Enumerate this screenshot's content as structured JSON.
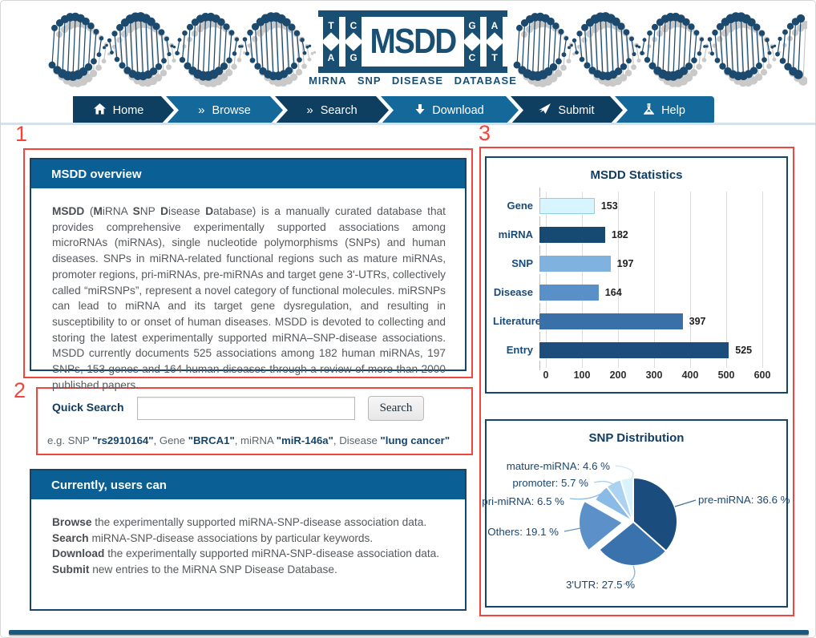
{
  "header": {
    "logo_text": "MSDD",
    "logo_subtitle": "MIRNA SNP DISEASE DATABASE",
    "logo_left_letters": [
      "T",
      "C",
      "A",
      "G"
    ],
    "logo_right_letters": [
      "G",
      "A",
      "C",
      "T"
    ]
  },
  "nav": {
    "items": [
      {
        "label": "Home",
        "icon": "home-icon"
      },
      {
        "label": "Browse",
        "icon": "chevrons-icon"
      },
      {
        "label": "Search",
        "icon": "chevrons-icon"
      },
      {
        "label": "Download",
        "icon": "download-arrow-icon"
      },
      {
        "label": "Submit",
        "icon": "send-icon"
      },
      {
        "label": "Help",
        "icon": "flask-icon"
      }
    ]
  },
  "annotations": {
    "one": "1",
    "two": "2",
    "three": "3"
  },
  "overview": {
    "title": "MSDD overview",
    "segments": [
      {
        "t": "MSDD",
        "b": true
      },
      {
        "t": " (",
        "b": false
      },
      {
        "t": "M",
        "b": true
      },
      {
        "t": "iRNA ",
        "b": false
      },
      {
        "t": "S",
        "b": true
      },
      {
        "t": "NP ",
        "b": false
      },
      {
        "t": "D",
        "b": true
      },
      {
        "t": "isease ",
        "b": false
      },
      {
        "t": "D",
        "b": true
      },
      {
        "t": "atabase) is a manually curated database that provides comprehensive experimentally supported associations among microRNAs (miRNAs), single nucleotide polymorphisms (SNPs) and human diseases. SNPs in miRNA-related functional regions such as mature miRNAs, promoter regions, pri-miRNAs, pre-miRNAs and target gene 3'-UTRs, collectively called “miRSNPs”, represent a novel category of functional molecules. miRSNPs can lead to miRNA and its target gene dysregulation, and resulting in susceptibility to or onset of human diseases. MSDD is devoted to collecting and storing the latest experimentally supported miRNA–SNP-disease associations. MSDD currently documents 525 associations among 182 human miRNAs, 197 SNPs, 153 genes and 164 human diseases through a review of more than 2000 published papers.",
        "b": false
      }
    ]
  },
  "quick_search": {
    "label": "Quick Search",
    "input_value": "",
    "button": "Search",
    "example": [
      {
        "t": "e.g. SNP ",
        "b": false
      },
      {
        "t": "\"rs2910164\"",
        "b": true
      },
      {
        "t": ", Gene ",
        "b": false
      },
      {
        "t": "\"BRCA1\"",
        "b": true
      },
      {
        "t": ", miRNA ",
        "b": false
      },
      {
        "t": "\"miR-146a\"",
        "b": true
      },
      {
        "t": ", Disease ",
        "b": false
      },
      {
        "t": "\"lung cancer\"",
        "b": true
      }
    ]
  },
  "users_can": {
    "title": "Currently, users can",
    "lines": [
      [
        {
          "t": "Browse",
          "b": true
        },
        {
          "t": " the experimentally supported miRNA-SNP-disease association data.",
          "b": false
        }
      ],
      [
        {
          "t": "Search",
          "b": true
        },
        {
          "t": " miRNA-SNP-disease associations by particular keywords.",
          "b": false
        }
      ],
      [
        {
          "t": "Download",
          "b": true
        },
        {
          "t": " the experimentally supported miRNA-SNP-disease association data.",
          "b": false
        }
      ],
      [
        {
          "t": "Submit",
          "b": true
        },
        {
          "t": " new entries to the MiRNA SNP Disease Database.",
          "b": false
        }
      ]
    ]
  },
  "chart_data": [
    {
      "type": "bar",
      "title": "MSDD Statistics",
      "orientation": "horizontal",
      "categories": [
        "Gene",
        "miRNA",
        "SNP",
        "Disease",
        "Literature",
        "Entry"
      ],
      "values": [
        153,
        182,
        197,
        164,
        397,
        525
      ],
      "colors": [
        "#d6f5fe",
        "#174a72",
        "#7fb2df",
        "#5a90c8",
        "#3a70a8",
        "#1d4d7c"
      ],
      "xlabel": "",
      "ylabel": "",
      "xlim": [
        0,
        670
      ],
      "xticks": [
        0,
        100,
        200,
        300,
        400,
        500,
        600
      ],
      "grid": true,
      "value_labels": true
    },
    {
      "type": "pie",
      "title": "SNP Distribution",
      "labels": [
        "pre-miRNA",
        "3'UTR",
        "Others",
        "pri-miRNA",
        "promoter",
        "mature-miRNA"
      ],
      "values": [
        36.6,
        27.5,
        19.1,
        6.5,
        5.7,
        4.6
      ],
      "unit": "%",
      "colors": [
        "#1a4c7d",
        "#3a72ae",
        "#5b90c8",
        "#8abbe6",
        "#abd3f0",
        "#d8f3fc"
      ],
      "exploded_slice": "Others",
      "start_angle_deg_from_top": 0,
      "direction": "clockwise"
    }
  ],
  "colors": {
    "navy": "#16456b",
    "panel_header": "#0a5f94",
    "nav_dark": "#0e3e60",
    "nav_light": "#15689a",
    "annotation_red": "#f2453d",
    "body_text": "#55595d"
  }
}
